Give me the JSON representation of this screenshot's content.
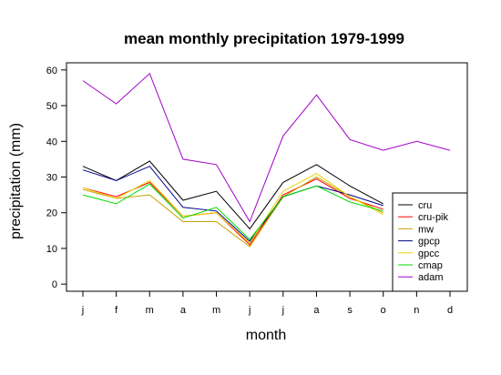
{
  "chart_data": {
    "type": "line",
    "title": "mean monthly precipitation 1979-1999",
    "xlabel": "month",
    "ylabel": "precipitation (mm)",
    "categories": [
      "j",
      "f",
      "m",
      "a",
      "m",
      "j",
      "j",
      "a",
      "s",
      "o",
      "n",
      "d"
    ],
    "yticks": [
      "0",
      "10",
      "20",
      "30",
      "40",
      "50",
      "60"
    ],
    "ylim": [
      -2,
      62
    ],
    "grid": false,
    "legend_position": "bottom-right",
    "series": [
      {
        "name": "cru",
        "color": "#000000",
        "values": [
          33,
          29,
          34.5,
          23.5,
          26,
          15.5,
          28.5,
          33.5,
          27.5,
          22.5,
          null,
          null
        ]
      },
      {
        "name": "cru-pik",
        "color": "#ff0000",
        "values": [
          27,
          24.5,
          28.5,
          19,
          20,
          11,
          25,
          29.5,
          24,
          21,
          null,
          null
        ]
      },
      {
        "name": "mw",
        "color": "#c8a000",
        "values": [
          26.5,
          24,
          25,
          17.5,
          17.5,
          10.5,
          24.5,
          30,
          24.5,
          20,
          null,
          null
        ]
      },
      {
        "name": "gpcp",
        "color": "#00008b",
        "values": [
          32,
          29,
          33,
          21.5,
          20.5,
          12,
          24.5,
          27.5,
          25,
          22,
          null,
          null
        ]
      },
      {
        "name": "gpcc",
        "color": "#e6d200",
        "values": [
          27,
          24,
          29,
          19,
          20,
          11.5,
          26,
          31,
          24.5,
          19.5,
          null,
          null
        ]
      },
      {
        "name": "cmap",
        "color": "#00dd00",
        "values": [
          25,
          22.5,
          28,
          18.5,
          21.5,
          12.5,
          24.5,
          27.5,
          23,
          20.5,
          null,
          null
        ]
      },
      {
        "name": "adam",
        "color": "#a000c8",
        "values": [
          57,
          50.5,
          59,
          35,
          33.5,
          17.5,
          41.5,
          53,
          40.5,
          37.5,
          40,
          37.5
        ]
      }
    ]
  }
}
